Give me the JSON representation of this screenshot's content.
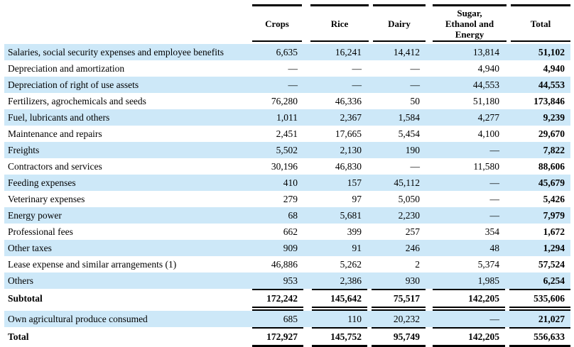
{
  "table": {
    "columns": [
      {
        "label": "Crops"
      },
      {
        "label": "Rice"
      },
      {
        "label": "Dairy"
      },
      {
        "label": "Sugar,\nEthanol and\nEnergy"
      },
      {
        "label": "Total"
      }
    ],
    "rows": [
      {
        "label": "Salaries, social security expenses and employee benefits",
        "values": [
          "6,635",
          "16,241",
          "14,412",
          "13,814",
          "51,102"
        ],
        "striped": true,
        "type": "normal"
      },
      {
        "label": "Depreciation and amortization",
        "values": [
          "—",
          "—",
          "—",
          "4,940",
          "4,940"
        ],
        "striped": false,
        "type": "normal"
      },
      {
        "label": "Depreciation of right of use assets",
        "values": [
          "—",
          "—",
          "—",
          "44,553",
          "44,553"
        ],
        "striped": true,
        "type": "normal"
      },
      {
        "label": "Fertilizers, agrochemicals and seeds",
        "values": [
          "76,280",
          "46,336",
          "50",
          "51,180",
          "173,846"
        ],
        "striped": false,
        "type": "normal"
      },
      {
        "label": "Fuel, lubricants and others",
        "values": [
          "1,011",
          "2,367",
          "1,584",
          "4,277",
          "9,239"
        ],
        "striped": true,
        "type": "normal"
      },
      {
        "label": "Maintenance and repairs",
        "values": [
          "2,451",
          "17,665",
          "5,454",
          "4,100",
          "29,670"
        ],
        "striped": false,
        "type": "normal"
      },
      {
        "label": "Freights",
        "values": [
          "5,502",
          "2,130",
          "190",
          "—",
          "7,822"
        ],
        "striped": true,
        "type": "normal"
      },
      {
        "label": "Contractors and services",
        "values": [
          "30,196",
          "46,830",
          "—",
          "11,580",
          "88,606"
        ],
        "striped": false,
        "type": "normal"
      },
      {
        "label": "Feeding expenses",
        "values": [
          "410",
          "157",
          "45,112",
          "—",
          "45,679"
        ],
        "striped": true,
        "type": "normal"
      },
      {
        "label": "Veterinary expenses",
        "values": [
          "279",
          "97",
          "5,050",
          "—",
          "5,426"
        ],
        "striped": false,
        "type": "normal"
      },
      {
        "label": "Energy power",
        "values": [
          "68",
          "5,681",
          "2,230",
          "—",
          "7,979"
        ],
        "striped": true,
        "type": "normal"
      },
      {
        "label": "Professional fees",
        "values": [
          "662",
          "399",
          "257",
          "354",
          "1,672"
        ],
        "striped": false,
        "type": "normal"
      },
      {
        "label": "Other taxes",
        "values": [
          "909",
          "91",
          "246",
          "48",
          "1,294"
        ],
        "striped": true,
        "type": "normal"
      },
      {
        "label": "Lease expense and similar arrangements (1)",
        "values": [
          "46,886",
          "5,262",
          "2",
          "5,374",
          "57,524"
        ],
        "striped": false,
        "type": "normal"
      },
      {
        "label": "Others",
        "values": [
          "953",
          "2,386",
          "930",
          "1,985",
          "6,254"
        ],
        "striped": true,
        "type": "normal"
      },
      {
        "label": "Subtotal",
        "values": [
          "172,242",
          "145,642",
          "75,517",
          "142,205",
          "535,606"
        ],
        "striped": false,
        "type": "subtotal"
      },
      {
        "label": "Own agricultural produce consumed",
        "values": [
          "685",
          "110",
          "20,232",
          "—",
          "21,027"
        ],
        "striped": true,
        "type": "ownprod"
      },
      {
        "label": "Total",
        "values": [
          "172,927",
          "145,752",
          "95,749",
          "142,205",
          "556,633"
        ],
        "striped": false,
        "type": "total"
      }
    ],
    "colors": {
      "stripe": "#cde8f8",
      "rule": "#000000",
      "text": "#000000"
    }
  }
}
